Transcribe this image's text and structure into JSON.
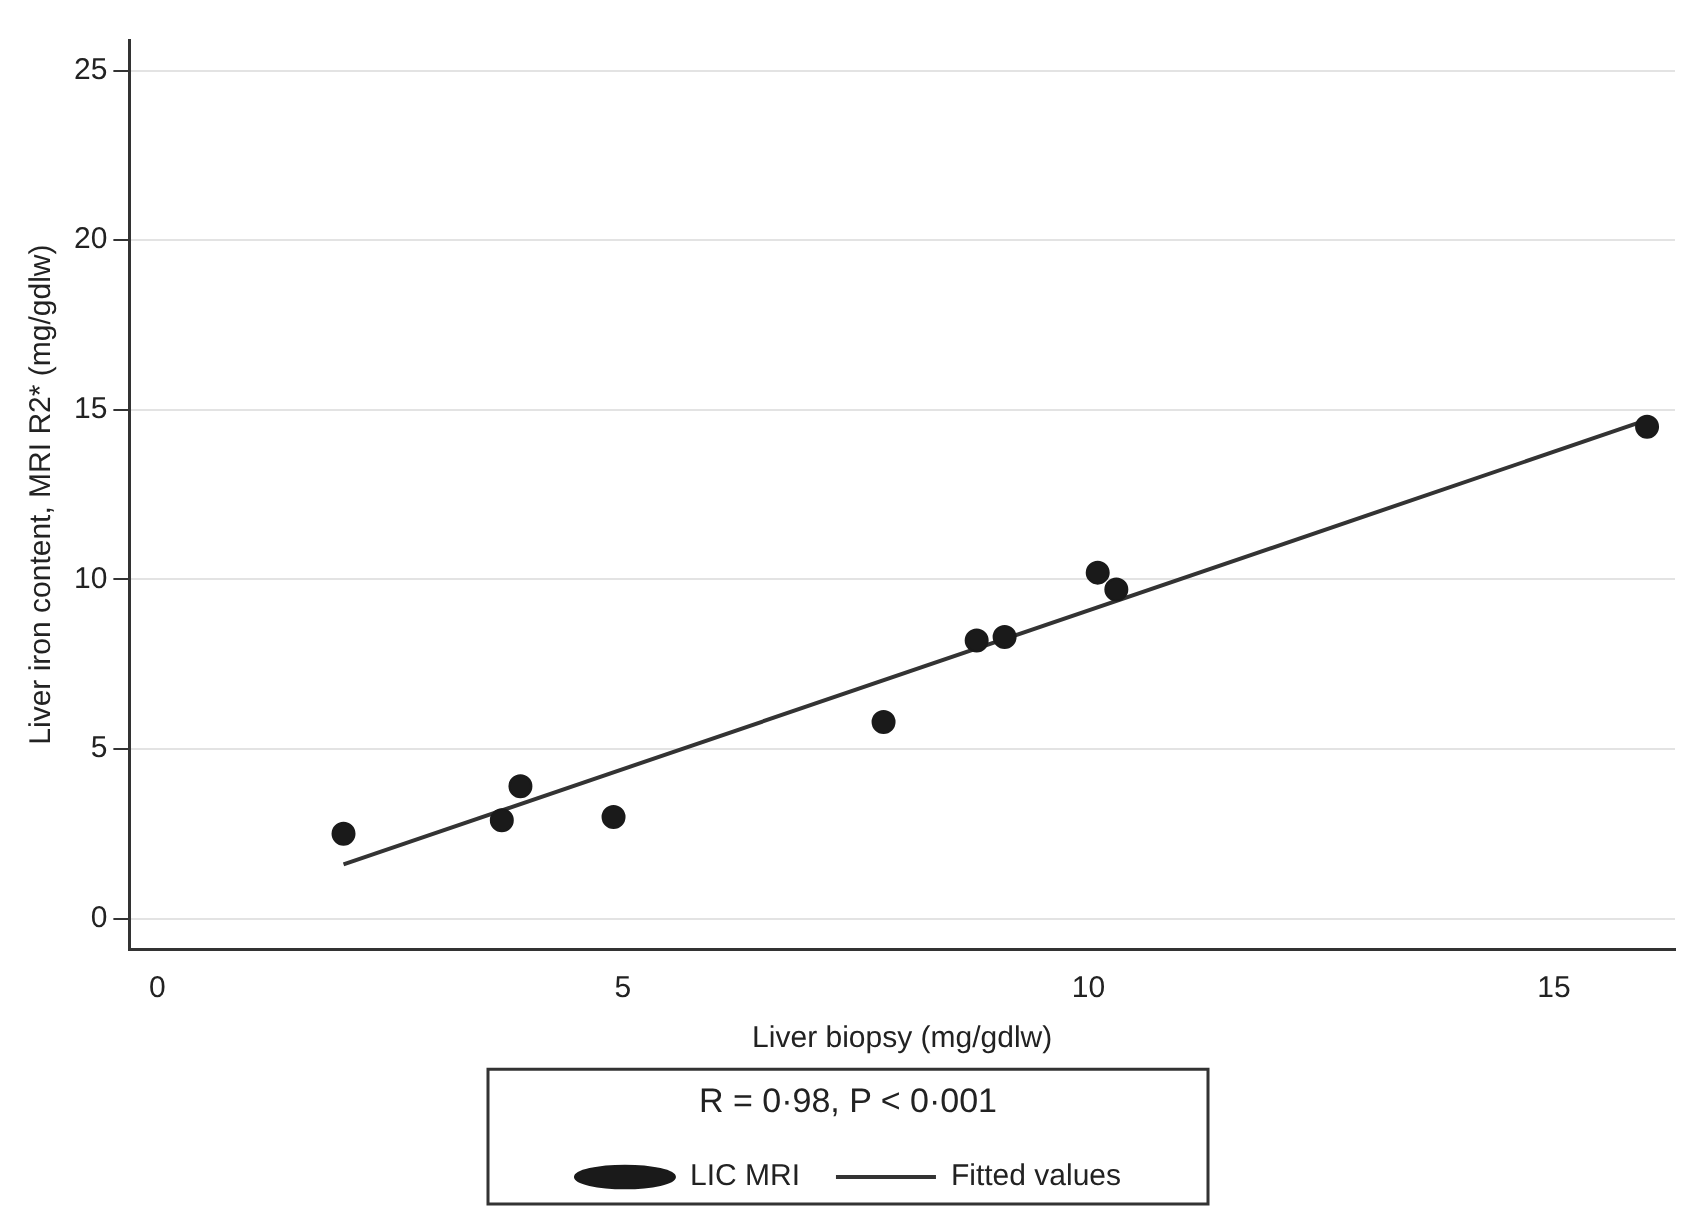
{
  "chart_data": {
    "type": "scatter",
    "xlabel": "Liver biopsy (mg/gdlw)",
    "ylabel": "Liver iron content, MRI R2* (mg/gdlw)",
    "annotations": [
      "R = 0·98, P < 0·001"
    ],
    "series": [
      {
        "name": "LIC MRI",
        "marker": "circle",
        "color": "#1a1a1a",
        "x": [
          2.0,
          3.7,
          3.9,
          4.9,
          7.8,
          8.8,
          9.1,
          10.1,
          10.3,
          16.0
        ],
        "values": [
          2.5,
          2.9,
          3.9,
          3.0,
          5.8,
          8.2,
          8.3,
          10.2,
          9.7,
          14.5
        ]
      },
      {
        "name": "Fitted values",
        "type": "line",
        "color": "#333333",
        "x": [
          2.0,
          16.0
        ],
        "values": [
          1.6,
          14.7
        ]
      }
    ],
    "xlim": [
      -0.3,
      16.3
    ],
    "xticks": [
      0,
      5,
      10,
      15
    ],
    "ylim": [
      -0.9,
      25.9
    ],
    "yticks": [
      0,
      5,
      10,
      15,
      20,
      25
    ],
    "grid": "y",
    "legend": "bottom"
  }
}
